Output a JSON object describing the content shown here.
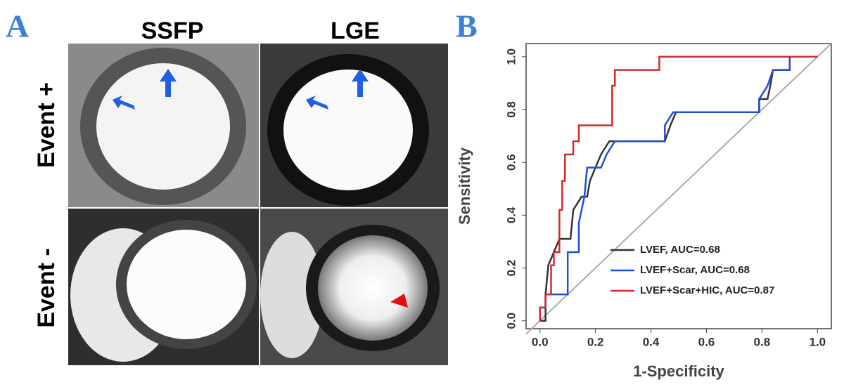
{
  "panel_a": {
    "label": "A",
    "columns": [
      "SSFP",
      "LGE"
    ],
    "rows": [
      "Event +",
      "Event -"
    ]
  },
  "chart_data": {
    "type": "line",
    "label": "B",
    "xlabel": "1-Specificity",
    "ylabel": "Sensitivity",
    "xlim": [
      -0.05,
      1.05
    ],
    "ylim": [
      -0.03,
      1.05
    ],
    "xticks": [
      {
        "value": 0,
        "label": "0.0"
      },
      0.2,
      0.4,
      0.6,
      0.8,
      {
        "value": 1,
        "label": "1.0"
      }
    ],
    "yticks": [
      {
        "value": 0,
        "label": "0.0"
      },
      0.2,
      0.4,
      0.6,
      0.8,
      {
        "value": 1,
        "label": "1.0"
      }
    ],
    "legend": "lower right",
    "series": [
      {
        "name": "LVEF, AUC=0.68",
        "color": "#333333",
        "x": [
          0,
          0.02,
          0.02,
          0.03,
          0.05,
          0.07,
          0.11,
          0.12,
          0.15,
          0.17,
          0.18,
          0.2,
          0.22,
          0.25,
          0.45,
          0.47,
          0.49,
          0.79,
          0.79,
          0.82,
          0.83,
          0.84,
          0.9,
          0.9,
          1.0
        ],
        "values": [
          0,
          0,
          0.1,
          0.21,
          0.26,
          0.31,
          0.31,
          0.42,
          0.47,
          0.47,
          0.53,
          0.58,
          0.63,
          0.68,
          0.68,
          0.74,
          0.79,
          0.79,
          0.84,
          0.84,
          0.89,
          0.95,
          0.95,
          1.0,
          1.0
        ]
      },
      {
        "name": "LVEF+Scar, AUC=0.68",
        "color": "#1f4fd6",
        "x": [
          0,
          0,
          0.02,
          0.02,
          0.1,
          0.1,
          0.14,
          0.14,
          0.16,
          0.17,
          0.22,
          0.24,
          0.27,
          0.45,
          0.45,
          0.48,
          0.79,
          0.79,
          0.82,
          0.84,
          0.9,
          0.9,
          1.0
        ],
        "values": [
          0,
          0.05,
          0.05,
          0.1,
          0.1,
          0.26,
          0.26,
          0.37,
          0.47,
          0.58,
          0.58,
          0.63,
          0.68,
          0.68,
          0.74,
          0.79,
          0.79,
          0.84,
          0.89,
          0.95,
          0.95,
          1.0,
          1.0
        ]
      },
      {
        "name": "LVEF+Scar+HIC, AUC=0.87",
        "color": "#d62a2a",
        "x": [
          0,
          0,
          0.02,
          0.02,
          0.04,
          0.04,
          0.05,
          0.05,
          0.07,
          0.07,
          0.08,
          0.08,
          0.09,
          0.09,
          0.12,
          0.12,
          0.14,
          0.14,
          0.26,
          0.26,
          0.27,
          0.27,
          0.43,
          0.43,
          1.0
        ],
        "values": [
          0,
          0.05,
          0.05,
          0.1,
          0.1,
          0.21,
          0.21,
          0.26,
          0.26,
          0.42,
          0.42,
          0.53,
          0.53,
          0.63,
          0.63,
          0.68,
          0.68,
          0.74,
          0.74,
          0.89,
          0.89,
          0.95,
          0.95,
          1.0,
          1.0
        ]
      }
    ]
  }
}
